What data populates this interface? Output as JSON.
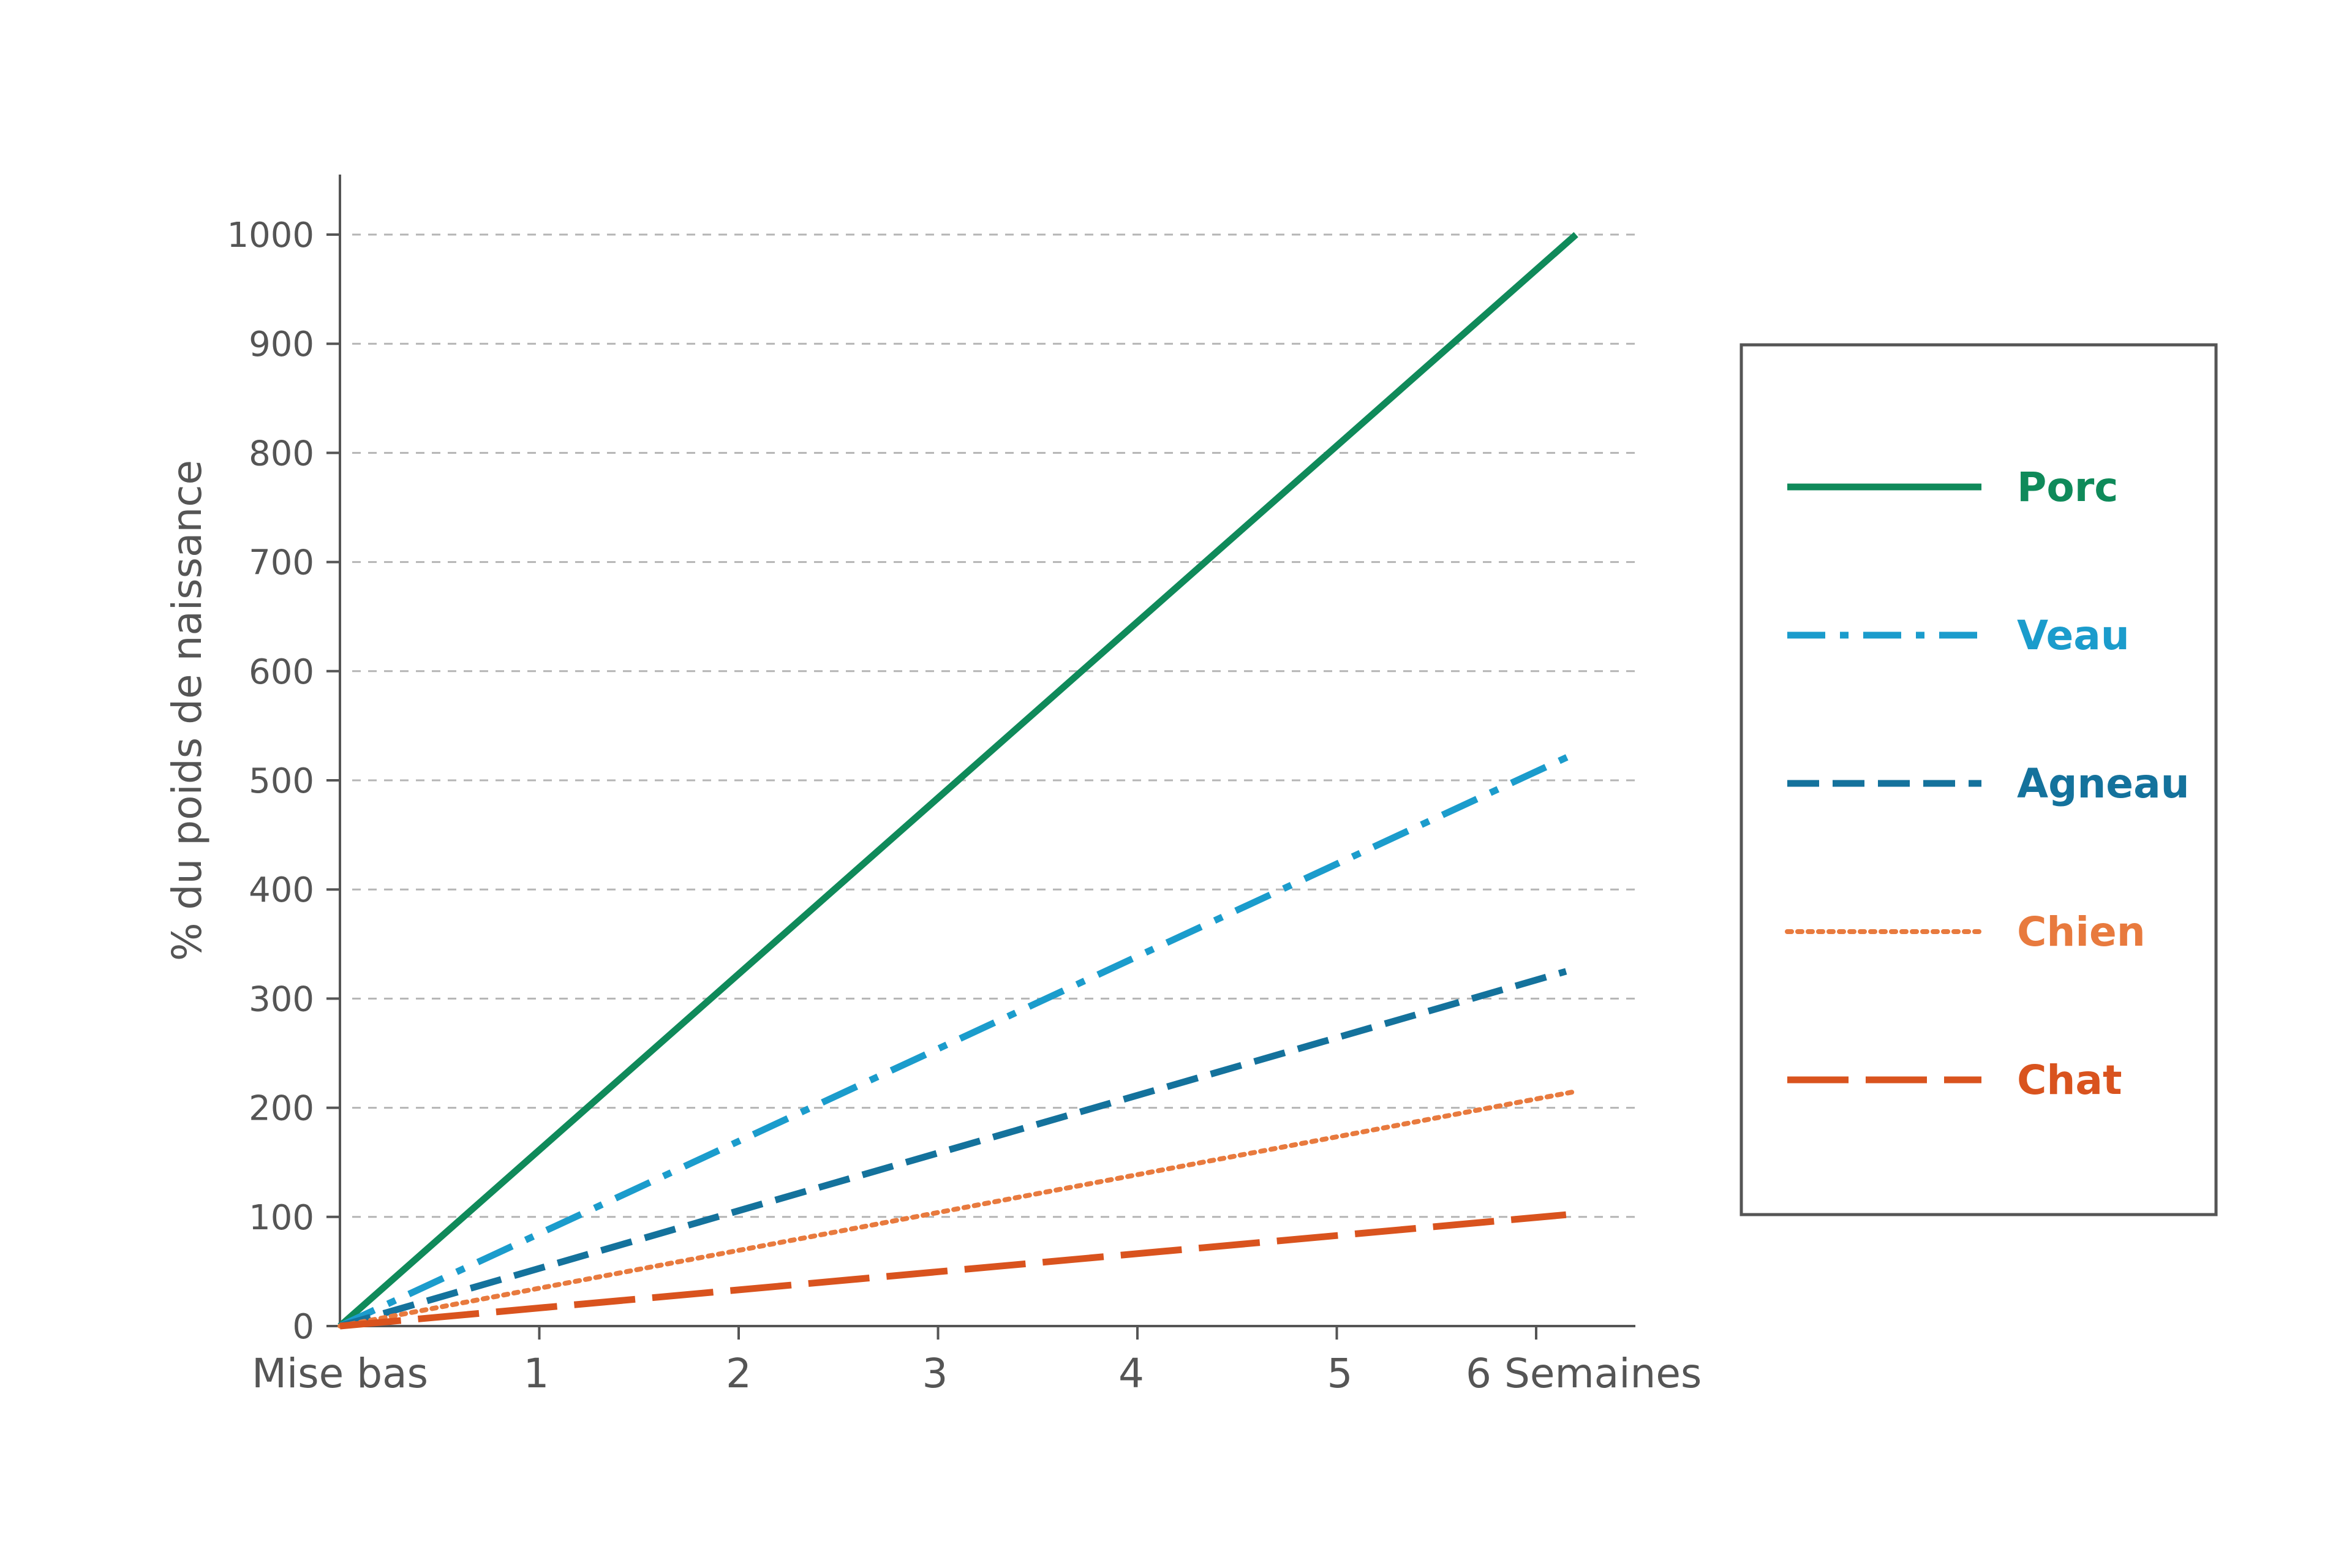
{
  "chart_data": {
    "type": "line",
    "ylabel": "% du poids de naissance",
    "x_tick_labels": [
      "Mise bas",
      "1",
      "2",
      "3",
      "4",
      "5",
      "6 Semaines"
    ],
    "x_ticks": [
      0,
      1,
      2,
      3,
      4,
      5,
      6
    ],
    "xlim": [
      0,
      6.2
    ],
    "ylim": [
      0,
      1000
    ],
    "y_ticks": [
      0,
      100,
      200,
      300,
      400,
      500,
      600,
      700,
      800,
      900,
      1000
    ],
    "grid": "horizontal dashed",
    "legend_position": "right",
    "series": [
      {
        "name": "Porc",
        "color": "#0f8a5a",
        "style": "solid",
        "x": [
          0,
          6.2
        ],
        "y": [
          0,
          1000
        ]
      },
      {
        "name": "Veau",
        "color": "#1b9ccc",
        "style": "dashdot",
        "x": [
          0,
          6.2
        ],
        "y": [
          0,
          525
        ]
      },
      {
        "name": "Agneau",
        "color": "#14729c",
        "style": "dashed",
        "x": [
          0,
          6.15
        ],
        "y": [
          0,
          325
        ]
      },
      {
        "name": "Chien",
        "color": "#e87a3e",
        "style": "dotted",
        "x": [
          0,
          6.2
        ],
        "y": [
          0,
          215
        ]
      },
      {
        "name": "Chat",
        "color": "#d9531e",
        "style": "longdash",
        "x": [
          0,
          6.15
        ],
        "y": [
          0,
          102
        ]
      }
    ]
  }
}
